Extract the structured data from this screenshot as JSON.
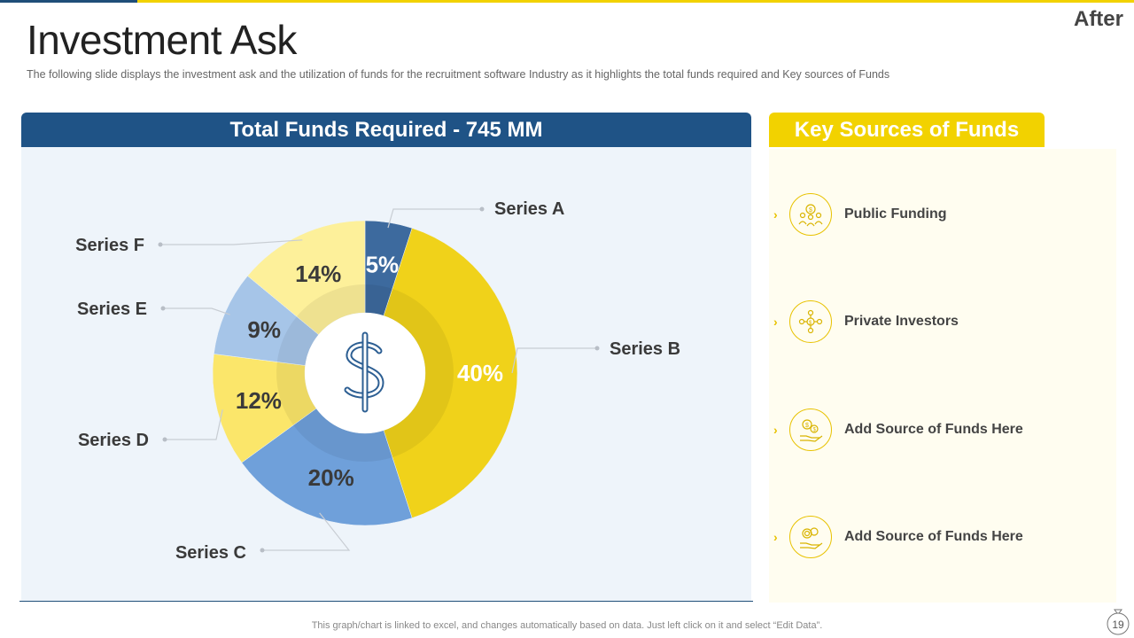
{
  "slide": {
    "tag": "After",
    "title": "Investment Ask",
    "subtitle": "The following  slide displays the investment  ask and the utilization of funds for the recruitment  software  Industry  as it highlights  the total funds  required   and   Key sources  of Funds",
    "footer": "This graph/chart is linked to excel,  and changes automatically based on data. Just left click on it and select “Edit Data”.",
    "page_number": "19"
  },
  "left_panel": {
    "header": "Total Funds Required - 745 MM",
    "center_icon": "dollar-icon"
  },
  "right_panel": {
    "header": "Key Sources of Funds",
    "items": [
      {
        "label": "Public Funding",
        "icon": "crowd-funding-icon"
      },
      {
        "label": "Private Investors",
        "icon": "investor-network-icon"
      },
      {
        "label": "Add Source of Funds Here",
        "icon": "money-bag-hand-icon"
      },
      {
        "label": "Add Source of Funds Here",
        "icon": "coins-hand-icon"
      }
    ]
  },
  "colors": {
    "dark_blue": "#1f5386",
    "yellow": "#f2d200",
    "light_panel_blue": "#eef4fa",
    "light_panel_yellow": "#fffdf0"
  },
  "chart_data": {
    "type": "pie",
    "variant": "donut",
    "categories": [
      "Series A",
      "Series B",
      "Series C",
      "Series D",
      "Series E",
      "Series F"
    ],
    "values": [
      5,
      40,
      20,
      12,
      9,
      14
    ],
    "data_labels": [
      "5%",
      "40%",
      "20%",
      "12%",
      "9%",
      "14%"
    ],
    "colors": [
      "#3d6a9e",
      "#f0d21a",
      "#6fa0da",
      "#fbe66a",
      "#a6c5e8",
      "#fdf09a"
    ],
    "legend_placement": "callout labels"
  }
}
